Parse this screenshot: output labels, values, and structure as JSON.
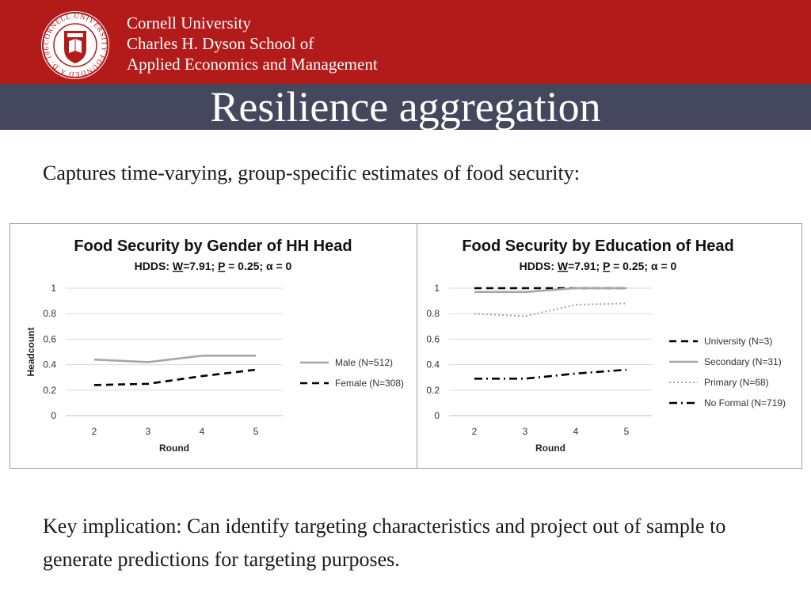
{
  "header": {
    "university_lines": [
      "Cornell University",
      "Charles H. Dyson School of",
      "Applied Economics and Management"
    ],
    "seal_text": "CORNELL UNIVERSITY FOUNDED A.D. 1865",
    "brand_red": "#b31b1b",
    "band_color": "#45475d"
  },
  "slide": {
    "title": "Resilience aggregation",
    "intro": "Captures time-varying, group-specific estimates of food security:",
    "implication": "Key implication: Can identify targeting characteristics and project out of sample to generate predictions for targeting purposes."
  },
  "chart_data": [
    {
      "type": "line",
      "title": "Food Security by Gender of HH Head",
      "subtitle_parts": [
        "HDDS: ",
        "W",
        "=7.91; ",
        "P",
        " = 0.25; α = 0"
      ],
      "xlabel": "Round",
      "ylabel": "Headcount",
      "x": [
        2,
        3,
        4,
        5
      ],
      "ylim": [
        0,
        1
      ],
      "yticks": [
        "0",
        "0.2",
        "0.4",
        "0.6",
        "0.8",
        "1"
      ],
      "grid": true,
      "legend_position": "right",
      "series": [
        {
          "name": "Male (N=512)",
          "values": [
            0.44,
            0.42,
            0.47,
            0.47
          ],
          "style": "solid",
          "color": "#a6a6a6"
        },
        {
          "name": "Female (N=308)",
          "values": [
            0.24,
            0.25,
            0.31,
            0.36
          ],
          "style": "dash",
          "color": "#000000"
        }
      ]
    },
    {
      "type": "line",
      "title": "Food Security by Education of Head",
      "subtitle_parts": [
        "HDDS: ",
        "W",
        "=7.91; ",
        "P",
        " = 0.25; α = 0"
      ],
      "xlabel": "Round",
      "ylabel": "",
      "x": [
        2,
        3,
        4,
        5
      ],
      "ylim": [
        0,
        1
      ],
      "yticks": [
        "0",
        "0.2",
        "0.4",
        "0.6",
        "0.8",
        "1"
      ],
      "grid": true,
      "legend_position": "right",
      "series": [
        {
          "name": "University (N=3)",
          "values": [
            1.0,
            1.0,
            1.0,
            1.0
          ],
          "style": "dash",
          "color": "#000000"
        },
        {
          "name": "Secondary (N=31)",
          "values": [
            0.97,
            0.97,
            1.0,
            1.0
          ],
          "style": "solid",
          "color": "#a6a6a6"
        },
        {
          "name": "Primary (N=68)",
          "values": [
            0.8,
            0.78,
            0.87,
            0.88
          ],
          "style": "dot",
          "color": "#a6a6a6"
        },
        {
          "name": "No Formal (N=719)",
          "values": [
            0.29,
            0.29,
            0.33,
            0.36
          ],
          "style": "dashdot",
          "color": "#000000"
        }
      ]
    }
  ]
}
